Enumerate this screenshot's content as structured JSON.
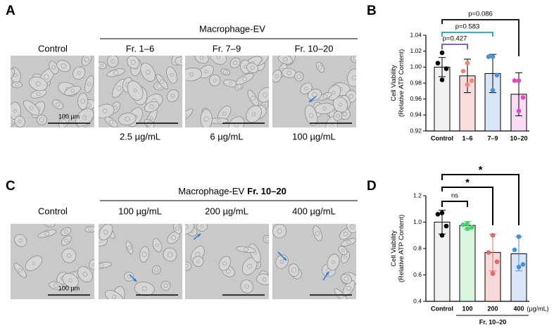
{
  "panel_a": {
    "letter": "A",
    "group": "Macrophage-EV",
    "columns": [
      "Control",
      "Fr. 1–6",
      "Fr. 7–9",
      "Fr. 10–20"
    ],
    "scale_bar": "100 µm",
    "doses": [
      "2.5 µg/mL",
      "6 µg/mL",
      "100 µg/mL"
    ]
  },
  "panel_c": {
    "letter": "C",
    "group": "Macrophage-EV",
    "group_bold": "Fr. 10–20",
    "columns": [
      "Control",
      "100 µg/mL",
      "200 µg/mL",
      "400 µg/mL"
    ],
    "scale_bar": "100 µm"
  },
  "chart_data": [
    {
      "type": "bar",
      "letter": "B",
      "y_label": [
        "Cell Viability",
        "(Relative ATP Content)"
      ],
      "categories": [
        "Control",
        "1–6",
        "7–9",
        "10–20"
      ],
      "values": [
        1.0,
        0.989,
        0.992,
        0.966
      ],
      "errors": [
        0.012,
        0.021,
        0.024,
        0.027
      ],
      "points": [
        [
          1.018,
          1.005,
          0.998,
          0.984
        ],
        [
          1.005,
          0.995,
          0.983,
          0.978
        ],
        [
          1.013,
          1.013,
          0.99,
          0.971
        ],
        [
          0.983,
          0.983,
          0.962,
          0.945
        ]
      ],
      "bar_colors": [
        "#f2f2f2",
        "#fbdcdc",
        "#d8e6f8",
        "#f9dcf3"
      ],
      "point_colors": [
        "#000000",
        "#f0857a",
        "#4a90d9",
        "#e04ac0"
      ],
      "ylim": [
        0.92,
        1.04
      ],
      "yticks": [
        0.92,
        0.94,
        0.96,
        0.98,
        {
          "value": 1,
          "label": "1.00"
        },
        1.02,
        1.04
      ],
      "comparisons": [
        {
          "label": "p=0.427",
          "color": "#6a4fd8"
        },
        {
          "label": "p=0.583",
          "color": "#23a3b5"
        },
        {
          "label": "p=0.086",
          "color": "#000000"
        }
      ]
    },
    {
      "type": "bar",
      "letter": "D",
      "y_label": [
        "Cell Viability",
        "(Relative ATP Content)"
      ],
      "categories": [
        "Control",
        "100",
        "200",
        "400"
      ],
      "unit": "(µg/mL)",
      "group_label": "Fr. 10–20",
      "values": [
        1.0,
        0.975,
        0.77,
        0.76
      ],
      "errors": [
        0.09,
        0.03,
        0.14,
        0.13
      ],
      "points": [
        [
          1.07,
          1.06,
          0.97,
          0.9
        ],
        [
          0.99,
          0.98,
          0.96,
          0.95
        ],
        [
          0.9,
          0.77,
          0.7,
          0.61
        ],
        [
          0.89,
          0.79,
          0.68,
          0.66
        ]
      ],
      "bar_colors": [
        "#f2f2f2",
        "#d6f6de",
        "#f8d9d9",
        "#d8e6f8"
      ],
      "point_colors": [
        "#000000",
        "#4fcf72",
        "#e06a6a",
        "#4a90d9"
      ],
      "ylim": [
        0.4,
        1.2
      ],
      "yticks": [
        0.4,
        0.6,
        0.8,
        {
          "value": 1,
          "label": "1.0"
        },
        1.2
      ],
      "comparisons": [
        {
          "label": "ns",
          "color": "#000000"
        },
        {
          "label": "*",
          "color": "#000000"
        },
        {
          "label": "*",
          "color": "#000000"
        }
      ]
    }
  ]
}
